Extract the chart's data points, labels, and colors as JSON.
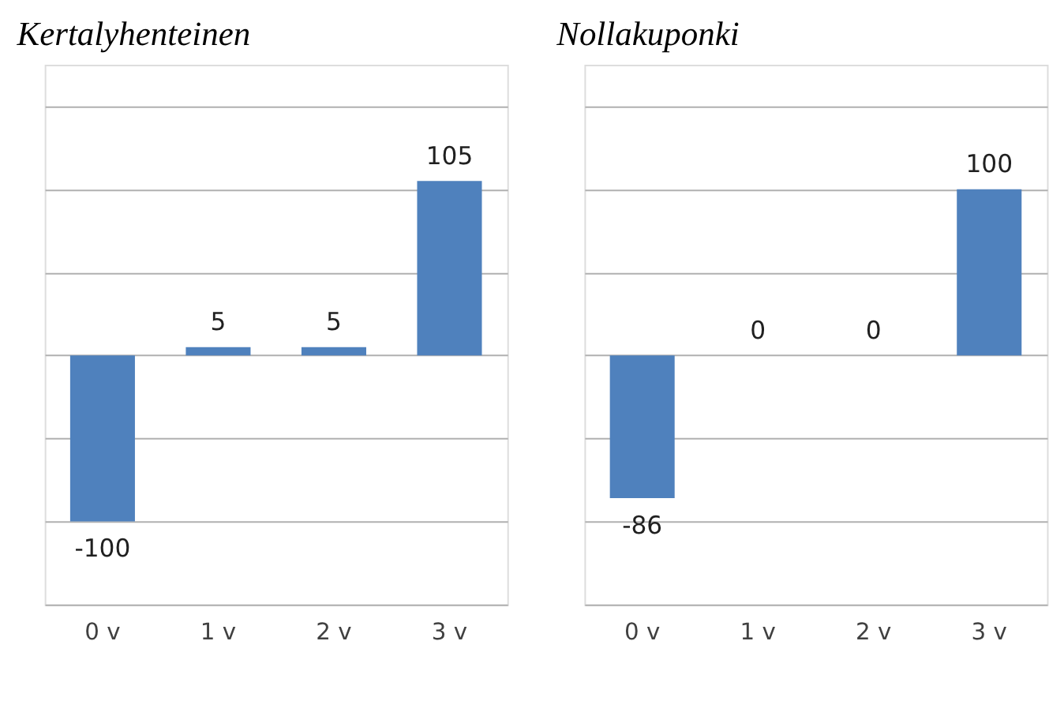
{
  "chart_data": [
    {
      "type": "bar",
      "title": "Kertalyhenteinen",
      "categories": [
        "0 v",
        "1 v",
        "2 v",
        "3 v"
      ],
      "values": [
        -100,
        5,
        5,
        105
      ],
      "color": "#4f81bd",
      "data_labels": true,
      "ylim": [
        -150,
        175
      ],
      "yticks": [
        {
          "value": -150,
          "label": null
        },
        {
          "value": -100,
          "label": null
        },
        {
          "value": -50,
          "label": null
        },
        {
          "value": 0,
          "label": null
        },
        {
          "value": 50,
          "label": null
        },
        {
          "value": 100,
          "label": null
        },
        {
          "value": 150,
          "label": null
        }
      ],
      "grid": "y",
      "tick_labels": "x"
    },
    {
      "type": "bar",
      "title": "Nollakuponki",
      "categories": [
        "0 v",
        "1 v",
        "2 v",
        "3 v"
      ],
      "values": [
        -86,
        0,
        0,
        100
      ],
      "color": "#4f81bd",
      "data_labels": true,
      "ylim": [
        -150,
        175
      ],
      "yticks": [
        {
          "value": -150,
          "label": null
        },
        {
          "value": -100,
          "label": null
        },
        {
          "value": -50,
          "label": null
        },
        {
          "value": 0,
          "label": null
        },
        {
          "value": 50,
          "label": null
        },
        {
          "value": 100,
          "label": null
        },
        {
          "value": 150,
          "label": null
        }
      ],
      "grid": "y",
      "tick_labels": "x"
    }
  ]
}
